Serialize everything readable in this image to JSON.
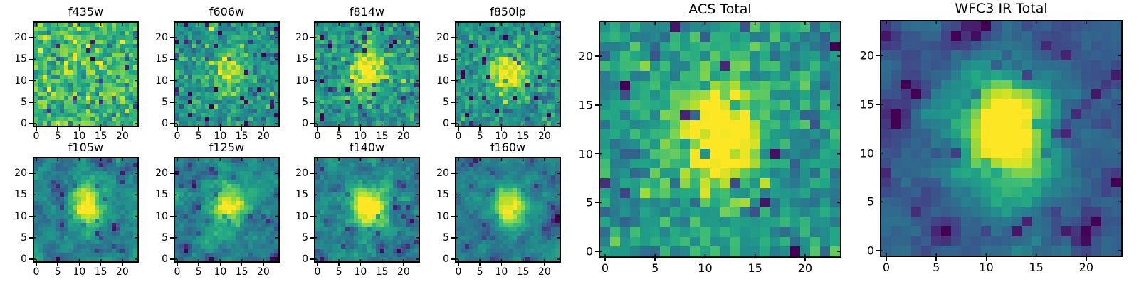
{
  "figure": {
    "background": "#ffffff",
    "text_color": "#000000",
    "axis_color": "#000000"
  },
  "chart_data": {
    "type": "heatmap",
    "grid": [
      24,
      24
    ],
    "extent": [
      0,
      24
    ],
    "xticks": [
      0,
      5,
      10,
      15,
      20
    ],
    "yticks": [
      0,
      5,
      10,
      15,
      20
    ],
    "grid_lines": false,
    "legend": "none",
    "colormap": {
      "name": "viridis",
      "stops": [
        "#440154",
        "#482475",
        "#414487",
        "#355f8d",
        "#2a788e",
        "#21918c",
        "#22a884",
        "#44bf70",
        "#7ad151",
        "#bddf26",
        "#fde725"
      ]
    },
    "panels": [
      {
        "title": "f435w",
        "model": {
          "seed": 101,
          "bg": 0.68,
          "noise_sd": 0.14,
          "smooth": 0,
          "amp": 0.07,
          "cx": 11.5,
          "cy": 12.0,
          "sigx": 3.0,
          "sigy": 3.0,
          "dark_frac": 0.025
        }
      },
      {
        "title": "f606w",
        "model": {
          "seed": 202,
          "bg": 0.52,
          "noise_sd": 0.11,
          "smooth": 0,
          "amp": 0.38,
          "cx": 12.0,
          "cy": 12.5,
          "sigx": 2.4,
          "sigy": 3.8,
          "dark_frac": 0.05
        }
      },
      {
        "title": "f814w",
        "model": {
          "seed": 303,
          "bg": 0.52,
          "noise_sd": 0.11,
          "smooth": 0,
          "amp": 0.52,
          "cx": 11.8,
          "cy": 12.2,
          "sigx": 2.7,
          "sigy": 3.8,
          "dark_frac": 0.04
        }
      },
      {
        "title": "f850lp",
        "model": {
          "seed": 404,
          "bg": 0.52,
          "noise_sd": 0.11,
          "smooth": 0,
          "amp": 0.5,
          "cx": 11.5,
          "cy": 11.8,
          "sigx": 3.2,
          "sigy": 3.4,
          "dark_frac": 0.04
        }
      },
      {
        "title": "f105w",
        "model": {
          "seed": 505,
          "bg": 0.45,
          "noise_sd": 0.1,
          "smooth": 0.55,
          "amp": 0.62,
          "cx": 12.0,
          "cy": 12.0,
          "sigx": 2.6,
          "sigy": 3.8,
          "dark_frac": 0.05
        }
      },
      {
        "title": "f125w",
        "model": {
          "seed": 606,
          "bg": 0.45,
          "noise_sd": 0.1,
          "smooth": 0.55,
          "amp": 0.62,
          "cx": 12.0,
          "cy": 12.5,
          "sigx": 3.0,
          "sigy": 3.5,
          "dark_frac": 0.05
        }
      },
      {
        "title": "f140w",
        "model": {
          "seed": 707,
          "bg": 0.45,
          "noise_sd": 0.1,
          "smooth": 0.5,
          "amp": 0.66,
          "cx": 11.8,
          "cy": 12.0,
          "sigx": 3.0,
          "sigy": 3.7,
          "dark_frac": 0.04
        }
      },
      {
        "title": "f160w",
        "model": {
          "seed": 808,
          "bg": 0.44,
          "noise_sd": 0.08,
          "smooth": 0.65,
          "amp": 0.72,
          "cx": 12.0,
          "cy": 12.0,
          "sigx": 2.6,
          "sigy": 3.1,
          "dark_frac": 0.04
        }
      },
      {
        "title": "ACS Total",
        "model": {
          "seed": 909,
          "bg": 0.52,
          "noise_sd": 0.11,
          "smooth": 0,
          "amp": 0.66,
          "cx": 11.5,
          "cy": 12.0,
          "sigx": 2.9,
          "sigy": 4.2,
          "dark_frac": 0.035
        }
      },
      {
        "title": "WFC3 IR Total",
        "model": {
          "seed": 1010,
          "bg": 0.3,
          "noise_sd": 0.07,
          "smooth": 0.6,
          "amp": 0.92,
          "cx": 12.0,
          "cy": 12.0,
          "sigx": 3.3,
          "sigy": 4.3,
          "dark_frac": 0.05
        }
      }
    ]
  }
}
